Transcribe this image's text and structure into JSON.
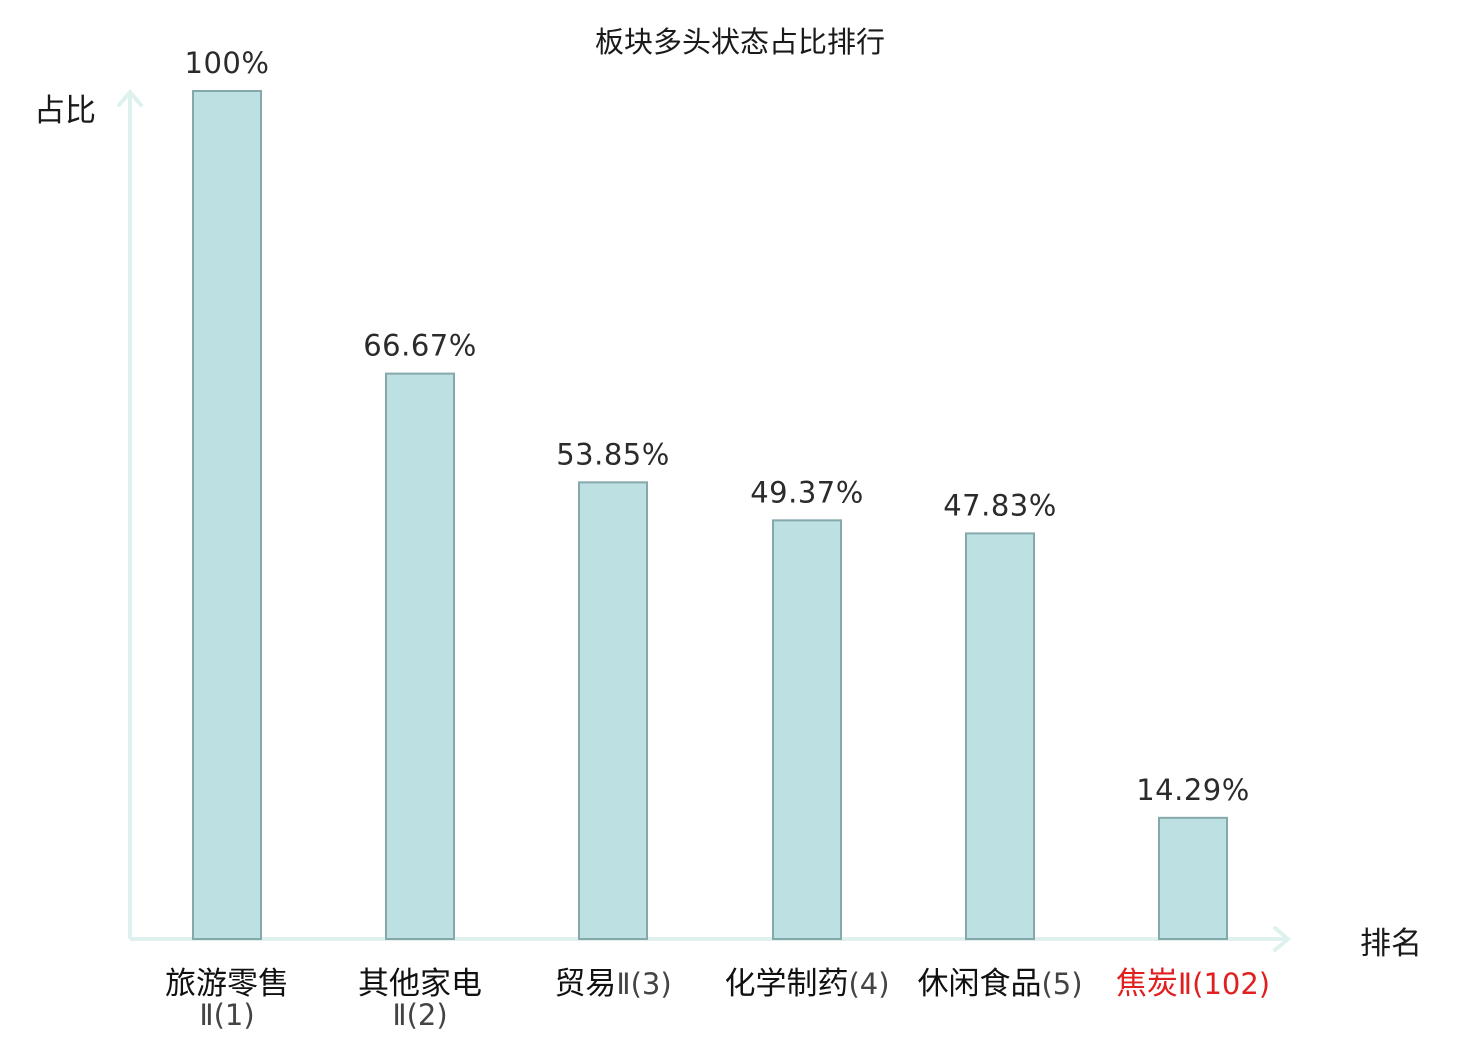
{
  "chart_data": {
    "type": "bar",
    "title": "板块多头状态占比排行",
    "ylabel": "占比",
    "xlabel": "排名",
    "ylim": [
      0,
      100
    ],
    "grid": false,
    "legend": "none",
    "categories": [
      {
        "name": "旅游零售",
        "rank": "Ⅱ(1)",
        "highlight": false
      },
      {
        "name": "其他家电",
        "rank": "Ⅱ(2)",
        "highlight": false
      },
      {
        "name": "贸易",
        "rank": "Ⅱ(3)",
        "highlight": false
      },
      {
        "name": "化学制药",
        "rank": "(4)",
        "highlight": false
      },
      {
        "name": "休闲食品",
        "rank": "(5)",
        "highlight": false
      },
      {
        "name": "焦炭",
        "rank": "Ⅱ(102)",
        "highlight": true
      }
    ],
    "values": [
      100,
      66.67,
      53.85,
      49.37,
      47.83,
      14.29
    ],
    "value_labels": [
      "100%",
      "66.67%",
      "53.85%",
      "49.37%",
      "47.83%",
      "14.29%"
    ],
    "colors": {
      "bar_fill": "#bde0e3",
      "bar_stroke": "#86a8ab",
      "axis": "#dff1ee",
      "text": "#2b2b2b",
      "highlight_text": "#e02020"
    }
  }
}
